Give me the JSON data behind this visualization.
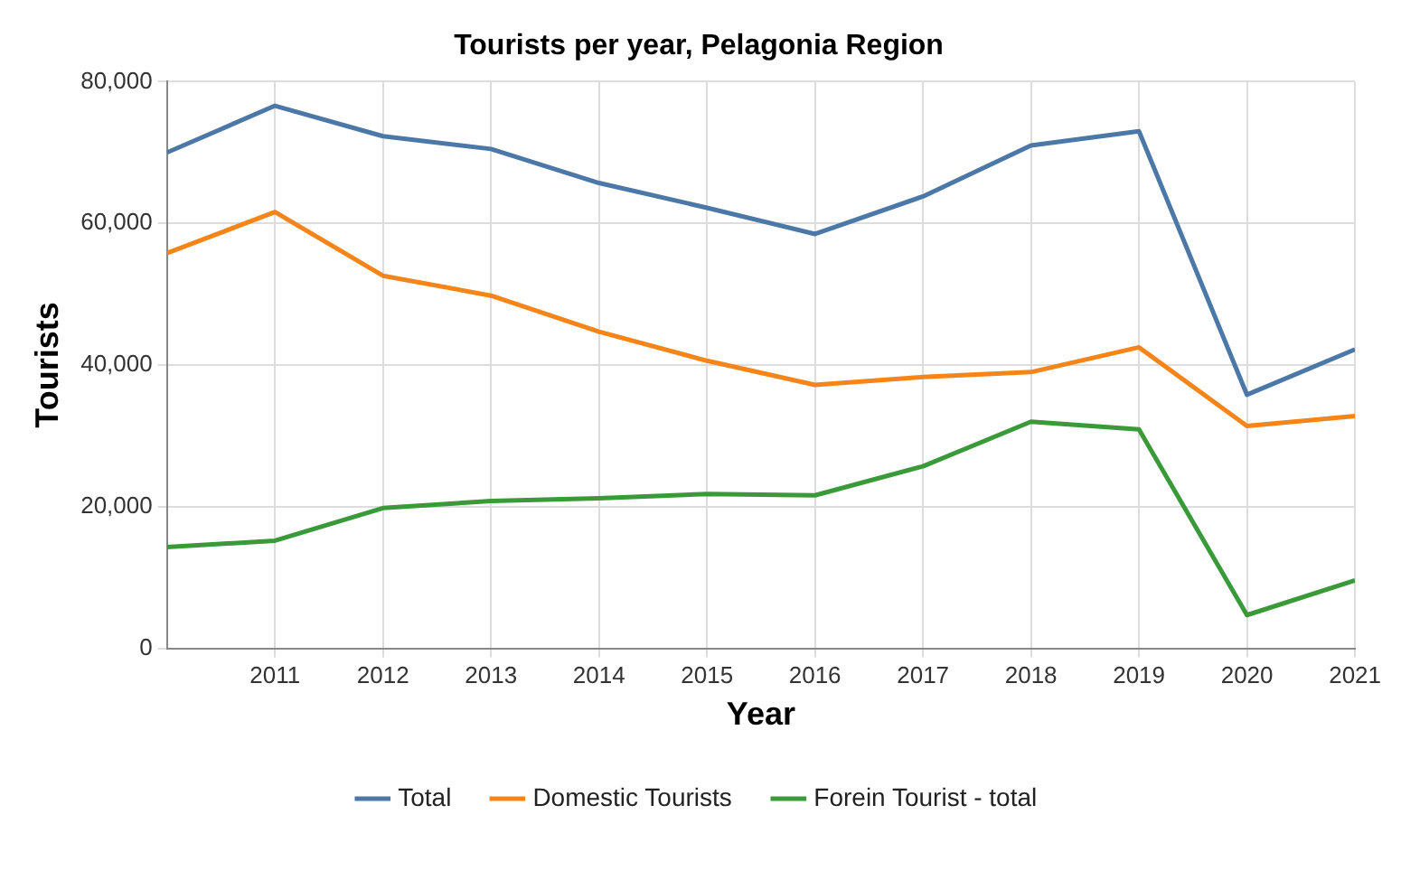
{
  "chart_data": {
    "type": "line",
    "title": "Tourists per year, Pelagonia Region",
    "xlabel": "Year",
    "ylabel": "Tourists",
    "x": [
      2010,
      2011,
      2012,
      2013,
      2014,
      2015,
      2016,
      2017,
      2018,
      2019,
      2020,
      2021
    ],
    "series": [
      {
        "name": "Total",
        "color": "#4c78a8",
        "values": [
          70000,
          76600,
          72300,
          70500,
          65700,
          62200,
          58500,
          63800,
          71000,
          73000,
          35800,
          42200
        ]
      },
      {
        "name": "Domestic Tourists",
        "color": "#f58518",
        "values": [
          55800,
          61600,
          52600,
          49800,
          44700,
          40600,
          37200,
          38300,
          39000,
          42500,
          31400,
          32800
        ]
      },
      {
        "name": "Forein Tourist - total",
        "color": "#3a9a3a",
        "values": [
          14300,
          15200,
          19800,
          20800,
          21200,
          21800,
          21600,
          25700,
          32000,
          30900,
          4700,
          9600
        ]
      }
    ],
    "xlim": [
      2010,
      2021
    ],
    "xticks": [
      2011,
      2012,
      2013,
      2014,
      2015,
      2016,
      2017,
      2018,
      2019,
      2020,
      2021
    ],
    "ylim": [
      0,
      80000
    ],
    "yticks": [
      {
        "value": 0,
        "label": "0"
      },
      {
        "value": 20000,
        "label": "20,000"
      },
      {
        "value": 40000,
        "label": "40,000"
      },
      {
        "value": 60000,
        "label": "60,000"
      },
      {
        "value": 80000,
        "label": "80,000"
      }
    ],
    "grid": true,
    "legend": "bottom",
    "marker": "none",
    "line_style": "solid"
  }
}
